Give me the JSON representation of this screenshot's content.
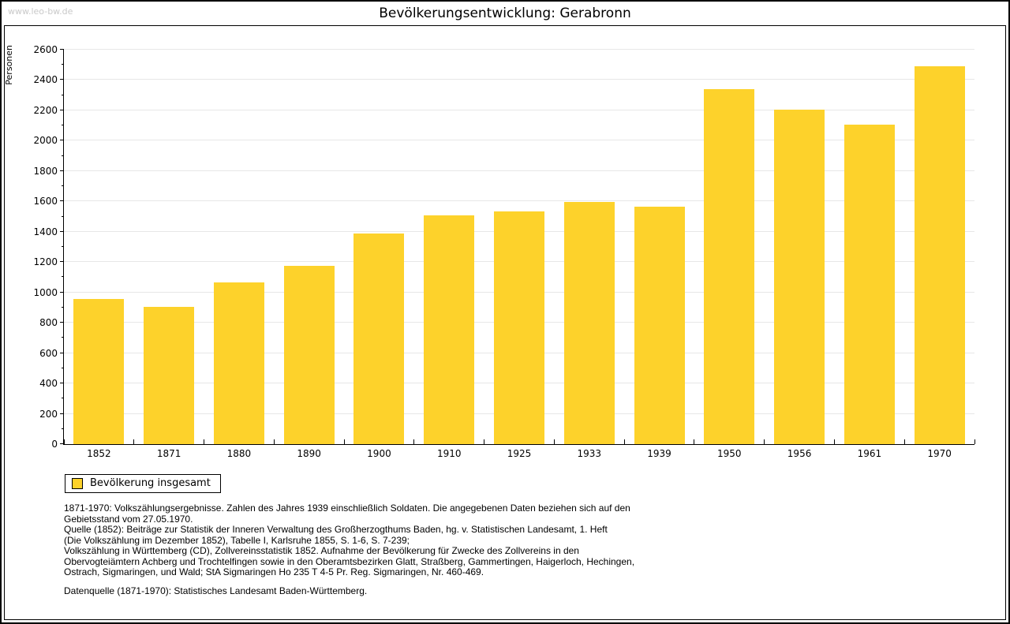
{
  "header": {
    "watermark": "www.leo-bw.de",
    "title": "Bevölkerungsentwicklung: Gerabronn"
  },
  "legend": {
    "label": "Bevölkerung insgesamt"
  },
  "chart_data": {
    "type": "bar",
    "title": "Bevölkerungsentwicklung: Gerabronn",
    "xlabel": "",
    "ylabel": "Personen",
    "categories": [
      "1852",
      "1871",
      "1880",
      "1890",
      "1900",
      "1910",
      "1925",
      "1933",
      "1939",
      "1950",
      "1956",
      "1961",
      "1970"
    ],
    "series": [
      {
        "name": "Bevölkerung insgesamt",
        "values": [
          955,
          905,
          1065,
          1175,
          1390,
          1510,
          1535,
          1595,
          1565,
          2340,
          2205,
          2105,
          2490
        ]
      }
    ],
    "ylim": [
      0,
      2600
    ],
    "ytick_step": 200,
    "ytick_minor_step": 100,
    "grid": true,
    "legend_position": "bottom-left",
    "bar_color": "#fdd22b",
    "grid_color": "#e7e7e7",
    "axis_color": "#000000"
  },
  "footnotes": {
    "lines": [
      "1871-1970: Volkszählungsergebnisse. Zahlen des Jahres 1939 einschließlich Soldaten. Die angegebenen Daten beziehen sich auf den",
      "Gebietsstand vom 27.05.1970.",
      "Quelle (1852): Beiträge zur Statistik der Inneren Verwaltung des Großherzogthums Baden, hg. v. Statistischen Landesamt, 1. Heft",
      "(Die Volkszählung im Dezember 1852), Tabelle I, Karlsruhe 1855, S. 1-6, S. 7-239;",
      "Volkszählung in Württemberg (CD), Zollvereinsstatistik 1852. Aufnahme der Bevölkerung für Zwecke des Zollvereins in den",
      "Obervogteiämtern Achberg und Trochtelfingen sowie in den Oberamtsbezirken Glatt, Straßberg, Gammertingen, Haigerloch, Hechingen,",
      "Ostrach, Sigmaringen, und Wald; StA Sigmaringen Ho 235 T 4-5 Pr. Reg. Sigmaringen, Nr. 460-469."
    ],
    "datasource": "Datenquelle (1871-1970): Statistisches Landesamt Baden-Württemberg."
  }
}
